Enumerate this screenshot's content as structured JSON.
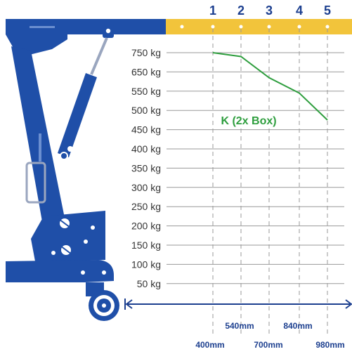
{
  "colors": {
    "crane_blue": "#1f4fa8",
    "boom_yellow": "#f2c43b",
    "curve_green": "#2e9e3e",
    "axis_blue": "#1c3f8f",
    "grid_gray": "#999999",
    "text_dark": "#333333"
  },
  "chart_data": {
    "type": "line",
    "series": [
      {
        "name": "K (2x Box)",
        "x": [
          400,
          540,
          700,
          840,
          980
        ],
        "y": [
          750,
          730,
          620,
          545,
          475
        ]
      }
    ],
    "positions": [
      1,
      2,
      3,
      4,
      5
    ],
    "y_ticks": [
      "750 kg",
      "650 kg",
      "550 kg",
      "500 kg",
      "450 kg",
      "400 kg",
      "350 kg",
      "300 kg",
      "250 kg",
      "200 kg",
      "150 kg",
      "100 kg",
      "50 kg"
    ],
    "x_tick_labels": [
      "400mm",
      "540mm",
      "700mm",
      "840mm",
      "980mm"
    ],
    "grid": true,
    "icons": [
      "crane-illustration",
      "double-arrow-icon"
    ]
  }
}
